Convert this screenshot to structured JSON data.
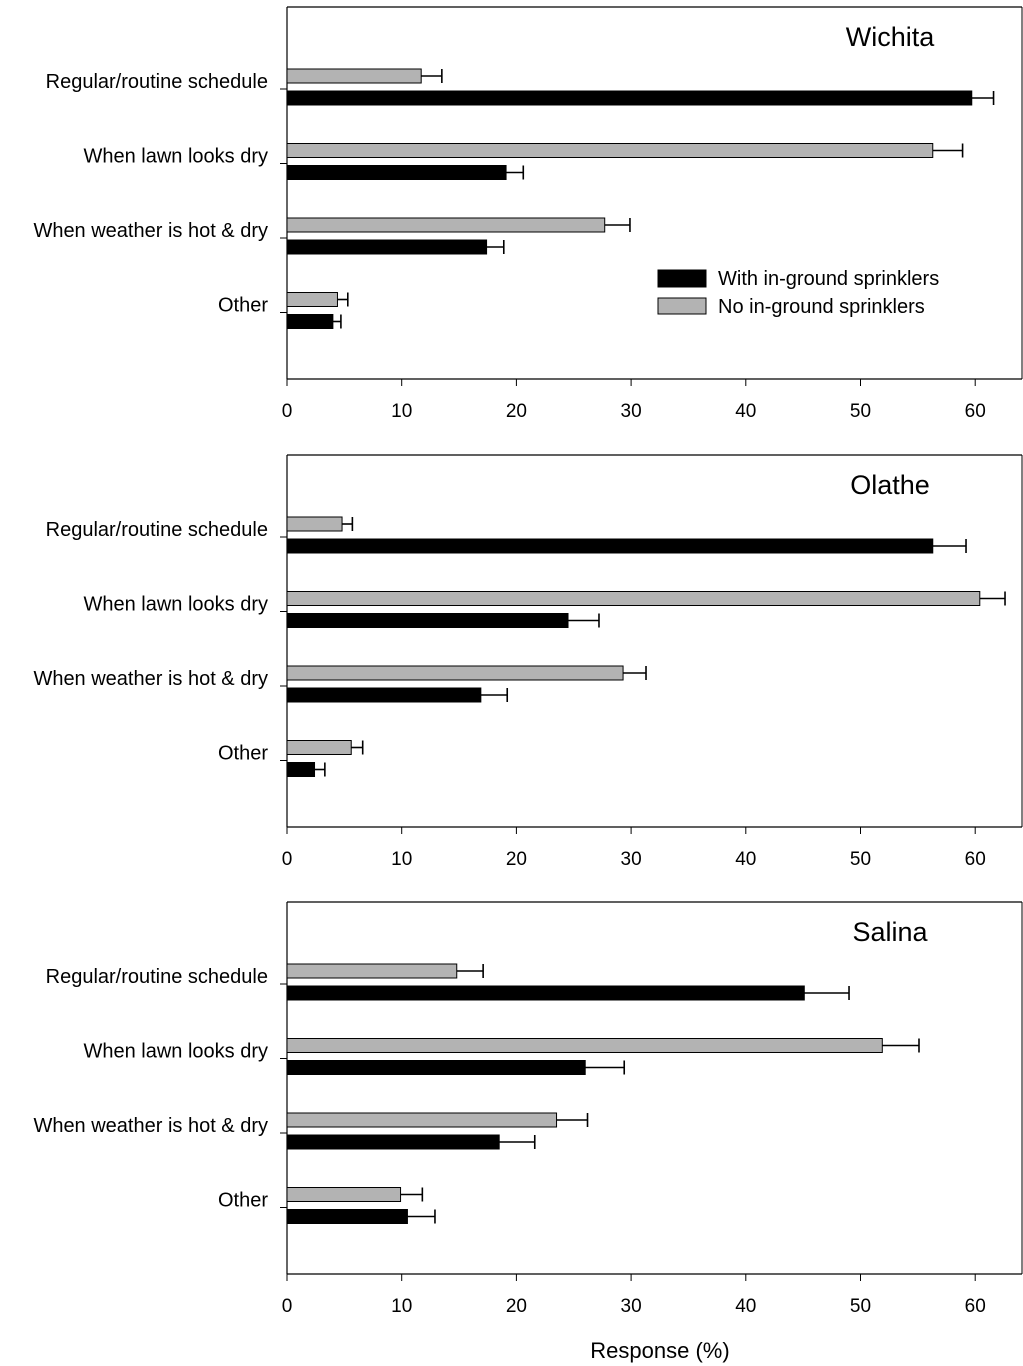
{
  "chart_data": [
    {
      "type": "bar",
      "orientation": "horizontal",
      "title": "Wichita",
      "categories": [
        "Regular/routine schedule",
        "When lawn looks dry",
        "When weather is hot & dry",
        "Other"
      ],
      "series": [
        {
          "name": "No in-ground sprinklers",
          "color": "#b3b3b3",
          "values": [
            11.7,
            56.3,
            27.7,
            4.4
          ],
          "errors": [
            1.8,
            2.6,
            2.2,
            0.9
          ]
        },
        {
          "name": "With in-ground sprinklers",
          "color": "#000000",
          "values": [
            59.7,
            19.1,
            17.4,
            4.0
          ],
          "errors": [
            1.9,
            1.5,
            1.5,
            0.7
          ]
        }
      ],
      "xlim": [
        0,
        64
      ],
      "xticks": [
        0,
        10,
        20,
        30,
        40,
        50,
        60
      ],
      "legend": "right, middle"
    },
    {
      "type": "bar",
      "orientation": "horizontal",
      "title": "Olathe",
      "categories": [
        "Regular/routine schedule",
        "When lawn looks dry",
        "When weather is hot & dry",
        "Other"
      ],
      "series": [
        {
          "name": "No in-ground sprinklers",
          "color": "#b3b3b3",
          "values": [
            4.8,
            60.4,
            29.3,
            5.6
          ],
          "errors": [
            0.9,
            2.2,
            2.0,
            1.0
          ]
        },
        {
          "name": "With in-ground sprinklers",
          "color": "#000000",
          "values": [
            56.3,
            24.5,
            16.9,
            2.4
          ],
          "errors": [
            2.9,
            2.7,
            2.3,
            0.9
          ]
        }
      ],
      "xlim": [
        0,
        64
      ],
      "xticks": [
        0,
        10,
        20,
        30,
        40,
        50,
        60
      ]
    },
    {
      "type": "bar",
      "orientation": "horizontal",
      "title": "Salina",
      "categories": [
        "Regular/routine schedule",
        "When lawn looks dry",
        "When weather is hot & dry",
        "Other"
      ],
      "series": [
        {
          "name": "No in-ground sprinklers",
          "color": "#b3b3b3",
          "values": [
            14.8,
            51.9,
            23.5,
            9.9
          ],
          "errors": [
            2.3,
            3.2,
            2.7,
            1.9
          ]
        },
        {
          "name": "With in-ground sprinklers",
          "color": "#000000",
          "values": [
            45.1,
            26.0,
            18.5,
            10.5
          ],
          "errors": [
            3.9,
            3.4,
            3.1,
            2.4
          ]
        }
      ],
      "xlim": [
        0,
        64
      ],
      "xticks": [
        0,
        10,
        20,
        30,
        40,
        50,
        60
      ]
    }
  ],
  "legend": {
    "with_label": "With in-ground sprinklers",
    "without_label": "No in-ground sprinklers"
  },
  "xlabel": "Response (%)"
}
